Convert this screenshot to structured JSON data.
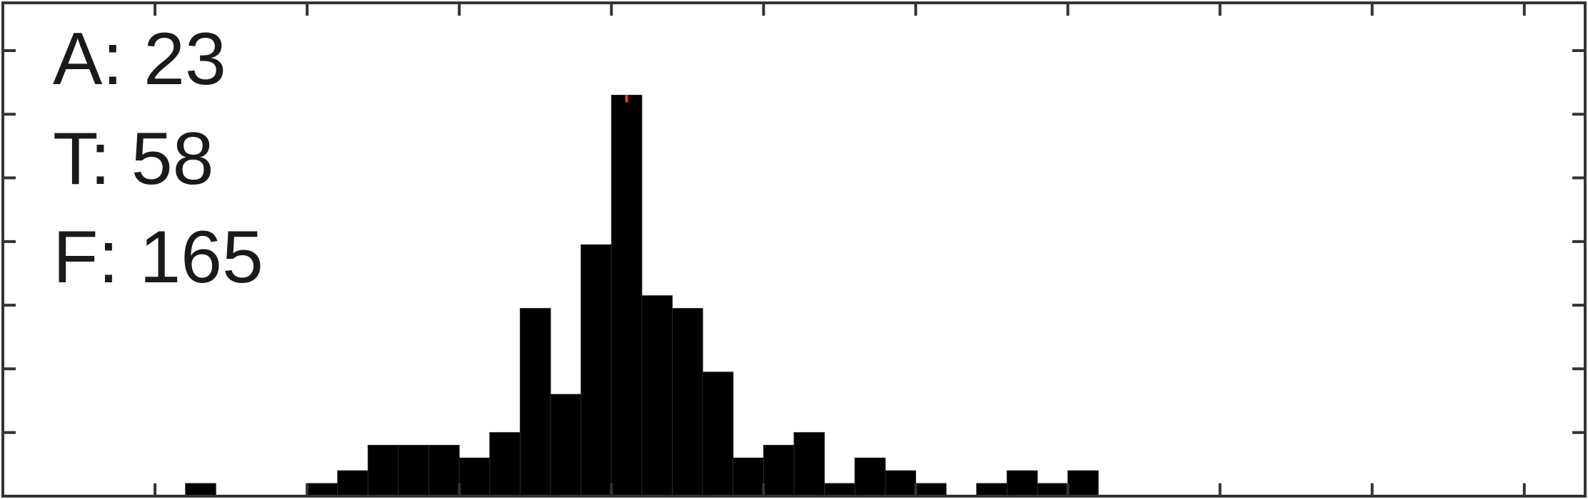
{
  "chart_data": {
    "type": "bar",
    "title": "",
    "xlabel": "",
    "ylabel": "",
    "grid": false,
    "legend": "none",
    "annotations": [
      "A: 23",
      "T: 58",
      "F: 165"
    ],
    "marker_color": "#ff3b30",
    "bar_color": "#000000",
    "bar_start": 3,
    "bar_width": 1,
    "values": [
      0,
      0,
      0,
      0.4,
      0,
      0,
      0,
      0.4,
      0.8,
      1.6,
      1.6,
      1.6,
      1.2,
      2.0,
      5.9,
      3.2,
      7.9,
      12.6,
      6.3,
      5.9,
      3.9,
      1.2,
      1.6,
      2.0,
      0.4,
      1.2,
      0.8,
      0.4,
      0,
      0.4,
      0.8,
      0.4,
      0.8
    ],
    "marker_index": 17,
    "xlim": [
      0,
      52
    ],
    "ylim": [
      0,
      15.5
    ],
    "x_ticks": [
      0,
      5,
      10,
      15,
      20,
      25,
      30,
      35,
      40,
      45,
      50
    ],
    "y_ticks": [
      2,
      4,
      6,
      8,
      10,
      12,
      14
    ]
  }
}
